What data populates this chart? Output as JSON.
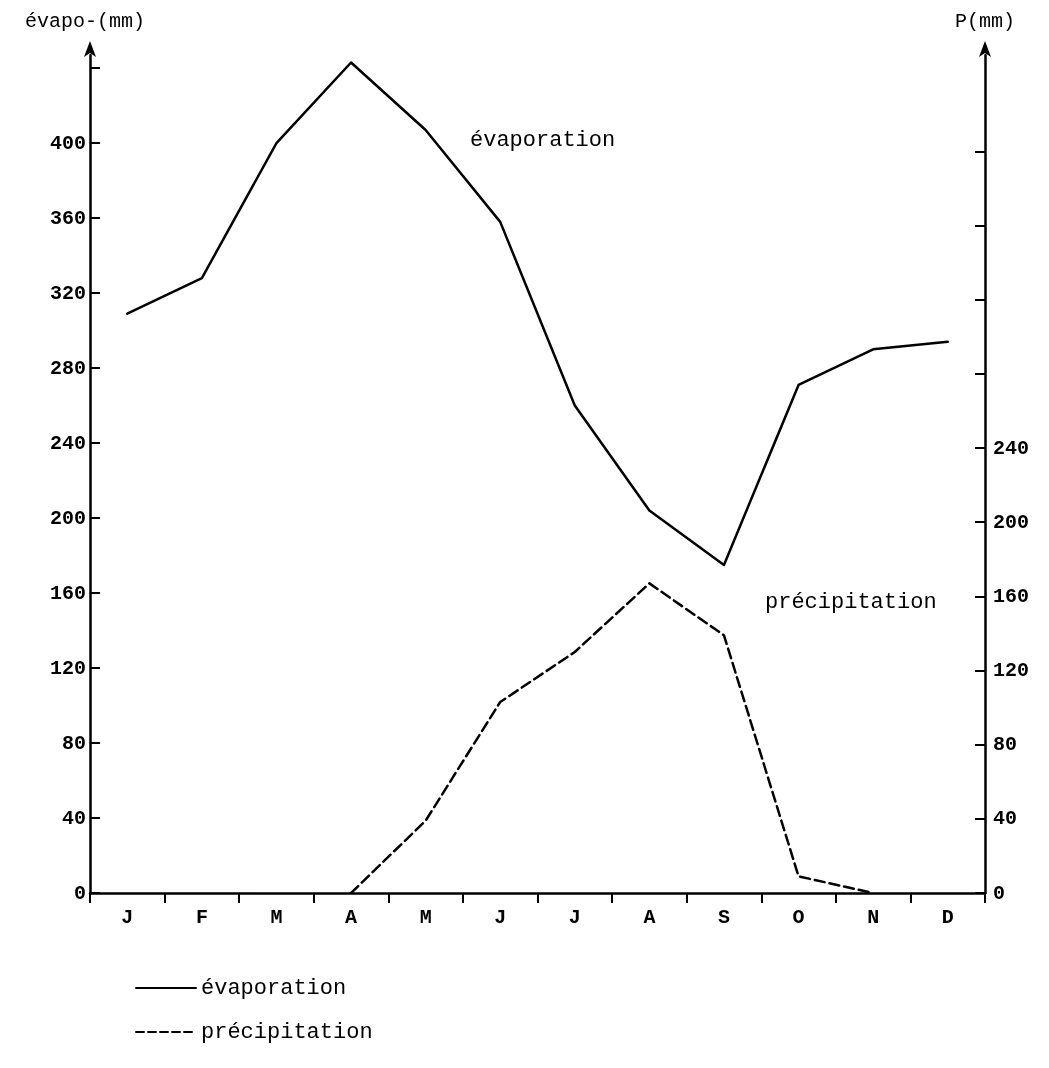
{
  "chart_data": {
    "type": "line",
    "ylabel": "évapo-(mm)",
    "y2label": "P(mm)",
    "categories": [
      "J",
      "F",
      "M",
      "A",
      "M",
      "J",
      "J",
      "A",
      "S",
      "O",
      "N",
      "D"
    ],
    "ylim": [
      0,
      447
    ],
    "yticks": [
      0,
      40,
      80,
      120,
      160,
      200,
      240,
      280,
      320,
      360,
      400,
      {
        "value": 440,
        "label": null
      }
    ],
    "y2lim": [
      0,
      452
    ],
    "y2ticks": [
      0,
      40,
      80,
      120,
      160,
      200,
      240,
      {
        "value": 280,
        "label": null
      },
      {
        "value": 320,
        "label": null
      },
      {
        "value": 360,
        "label": null
      },
      {
        "value": 400,
        "label": null
      }
    ],
    "series": [
      {
        "name": "évaporation",
        "color": "#000000",
        "line_style": "solid",
        "values": [
          309,
          328,
          400,
          443,
          407,
          358,
          260,
          204,
          175,
          271,
          290,
          294
        ]
      },
      {
        "name": "précipitation",
        "color": "#000000",
        "line_style": "dashed",
        "axis": "y2",
        "values": [
          null,
          null,
          null,
          0,
          39,
          103,
          130,
          167,
          139,
          9,
          0,
          null
        ]
      }
    ],
    "annotations": [
      "évaporation",
      "précipitation"
    ],
    "marker": "none",
    "grid": false,
    "legend": "bottom left"
  }
}
